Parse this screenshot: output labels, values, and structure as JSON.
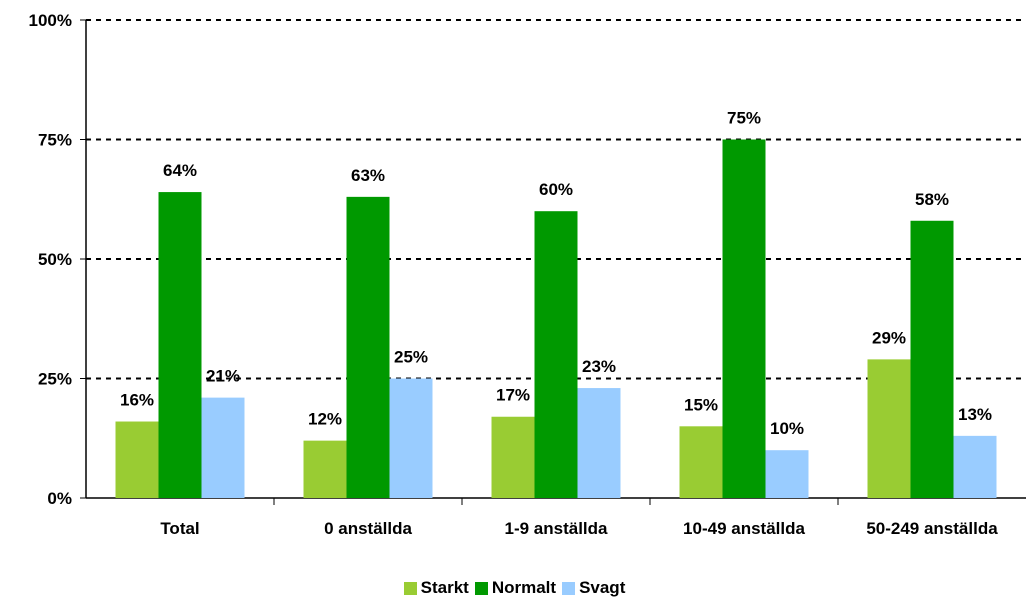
{
  "chart_data": {
    "type": "bar",
    "categories": [
      "Total",
      "0 anställda",
      "1-9 anställda",
      "10-49 anställda",
      "50-249 anställda"
    ],
    "series": [
      {
        "name": "Starkt",
        "color": "#99CC33",
        "values": [
          16,
          12,
          17,
          15,
          29
        ],
        "labels": [
          "16%",
          "12%",
          "17%",
          "15%",
          "29%"
        ]
      },
      {
        "name": "Normalt",
        "color": "#009900",
        "values": [
          64,
          63,
          60,
          75,
          58
        ],
        "labels": [
          "64%",
          "63%",
          "60%",
          "75%",
          "58%"
        ]
      },
      {
        "name": "Svagt",
        "color": "#99CCFF",
        "values": [
          21,
          25,
          23,
          10,
          13
        ],
        "labels": [
          "21%",
          "25%",
          "23%",
          "10%",
          "13%"
        ]
      }
    ],
    "yticks": [
      {
        "value": 0,
        "label": "0%"
      },
      {
        "value": 25,
        "label": "25%"
      },
      {
        "value": 50,
        "label": "50%"
      },
      {
        "value": 75,
        "label": "75%"
      },
      {
        "value": 100,
        "label": "100%"
      }
    ],
    "ylim": [
      0,
      100
    ],
    "grid": "dashed horizontal",
    "legend_position": "bottom"
  }
}
